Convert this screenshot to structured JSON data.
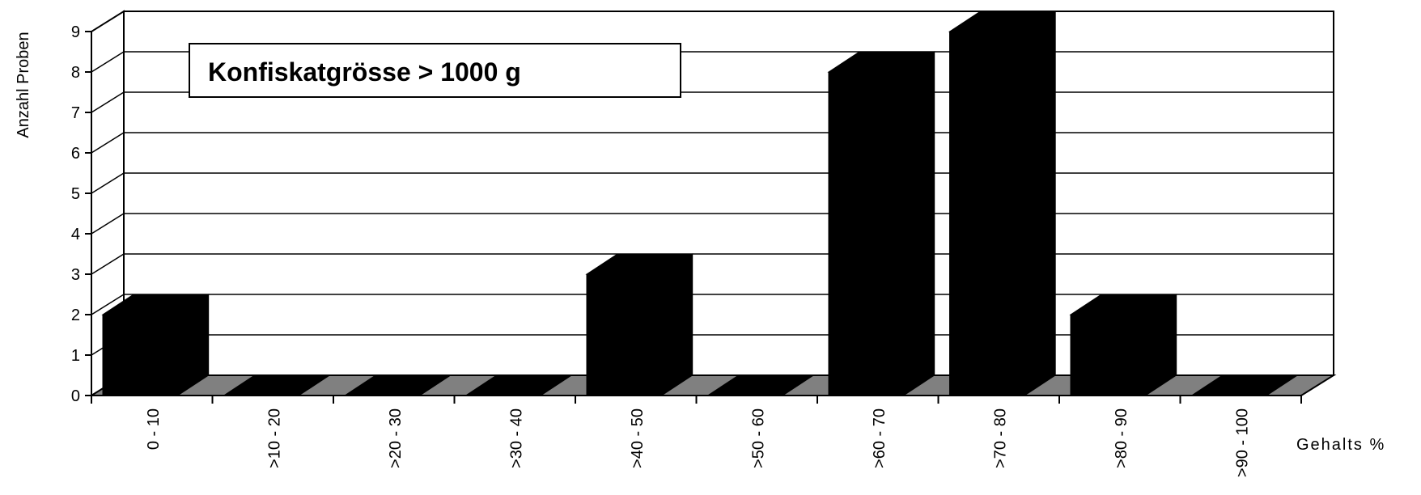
{
  "chart_data": {
    "type": "bar",
    "title": "Konfiskatgrösse > 1000 g",
    "xlabel": "Gehalts %",
    "ylabel": "Anzahl Proben",
    "categories": [
      "0 - 10",
      ">10 - 20",
      ">20 - 30",
      ">30 - 40",
      ">40 - 50",
      ">50 - 60",
      ">60 - 70",
      ">70 - 80",
      ">80 - 90",
      ">90 - 100"
    ],
    "values": [
      2,
      0,
      0,
      0,
      3,
      0,
      8,
      9,
      2,
      0
    ],
    "ylim": [
      0,
      9
    ],
    "yticks": [
      "0",
      "1",
      "2",
      "3",
      "4",
      "5",
      "6",
      "7",
      "8",
      "9"
    ],
    "grid": true,
    "legend": "none",
    "colors": {
      "bar": "#000000",
      "floor": "#808080",
      "gridline": "#000000",
      "background": "#ffffff"
    }
  }
}
